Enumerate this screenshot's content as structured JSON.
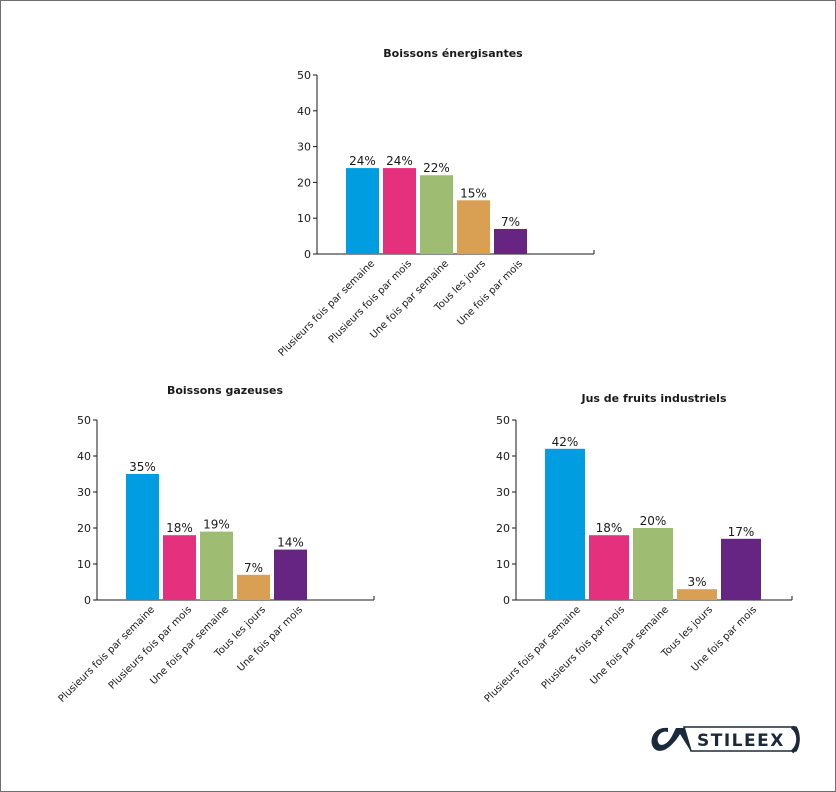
{
  "chart_data": [
    {
      "type": "bar",
      "title": "Boissons énergisantes",
      "categories": [
        "Plusieurs fois par semaine",
        "Plusieurs fois par mois",
        "Une fois par semaine",
        "Tous les jours",
        "Une fois par mois"
      ],
      "values": [
        24,
        24,
        22,
        15,
        7
      ],
      "data_labels": [
        "24%",
        "24%",
        "22%",
        "15%",
        "7%"
      ],
      "colors": [
        "#009ee0",
        "#e5307e",
        "#9fbc73",
        "#d9a054",
        "#662483"
      ],
      "yticks": [
        "0",
        "10",
        "20",
        "30",
        "40",
        "50"
      ],
      "ylim": [
        0,
        50
      ],
      "grid": false
    },
    {
      "type": "bar",
      "title": "Boissons gazeuses",
      "categories": [
        "Plusieurs fois par semaine",
        "Plusieurs fois par mois",
        "Une fois par semaine",
        "Tous les jours",
        "Une fois par mois"
      ],
      "values": [
        35,
        18,
        19,
        7,
        14
      ],
      "data_labels": [
        "35%",
        "18%",
        "19%",
        "7%",
        "14%"
      ],
      "colors": [
        "#009ee0",
        "#e5307e",
        "#9fbc73",
        "#d9a054",
        "#662483"
      ],
      "yticks": [
        "0",
        "10",
        "20",
        "30",
        "40",
        "50"
      ],
      "ylim": [
        0,
        50
      ],
      "grid": false
    },
    {
      "type": "bar",
      "title": "Jus de fruits industriels",
      "categories": [
        "Plusieurs fois par semaine",
        "Plusieurs fois par mois",
        "Une fois par semaine",
        "Tous les jours",
        "Une fois par mois"
      ],
      "values": [
        42,
        18,
        20,
        3,
        17
      ],
      "data_labels": [
        "42%",
        "18%",
        "20%",
        "3%",
        "17%"
      ],
      "colors": [
        "#009ee0",
        "#e5307e",
        "#9fbc73",
        "#d9a054",
        "#662483"
      ],
      "yticks": [
        "0",
        "10",
        "20",
        "30",
        "40",
        "50"
      ],
      "ylim": [
        0,
        50
      ],
      "grid": false
    }
  ],
  "logo": {
    "text": "STILEEX"
  }
}
